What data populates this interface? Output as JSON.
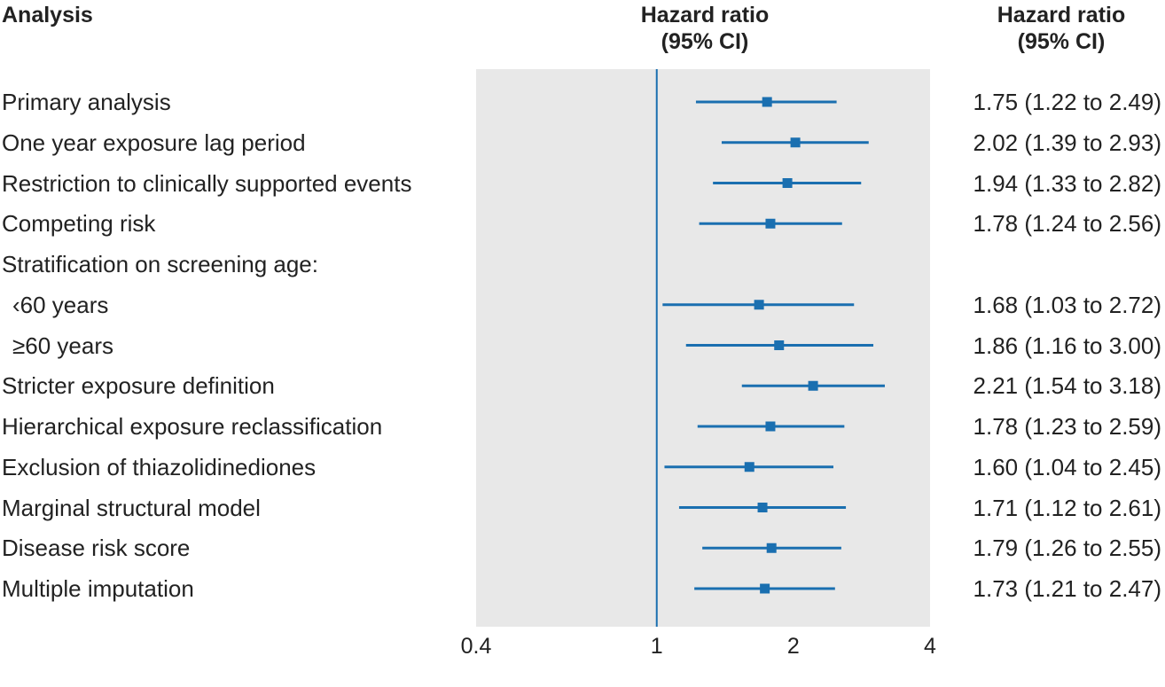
{
  "headers": {
    "analysis": "Analysis",
    "plot_line1": "Hazard ratio",
    "plot_line2": "(95% CI)",
    "values_line1": "Hazard ratio",
    "values_line2": "(95% CI)"
  },
  "colors": {
    "accent": "#1a6fb0",
    "panel": "#e8e8e8",
    "text": "#222222"
  },
  "chart_data": {
    "type": "forest",
    "xscale": "log",
    "xlim": [
      0.4,
      4
    ],
    "xticks": [
      "0.4",
      "1",
      "2",
      "4"
    ],
    "reference_line": 1,
    "rows": [
      {
        "label": "Primary analysis",
        "hr": 1.75,
        "lo": 1.22,
        "hi": 2.49,
        "text": "1.75 (1.22 to 2.49)",
        "indent": false
      },
      {
        "label": "One year exposure lag period",
        "hr": 2.02,
        "lo": 1.39,
        "hi": 2.93,
        "text": "2.02 (1.39 to 2.93)",
        "indent": false
      },
      {
        "label": "Restriction to clinically supported events",
        "hr": 1.94,
        "lo": 1.33,
        "hi": 2.82,
        "text": "1.94 (1.33 to 2.82)",
        "indent": false
      },
      {
        "label": "Competing risk",
        "hr": 1.78,
        "lo": 1.24,
        "hi": 2.56,
        "text": "1.78 (1.24 to 2.56)",
        "indent": false
      },
      {
        "label": "Stratification on screening age:",
        "hr": null,
        "lo": null,
        "hi": null,
        "text": "",
        "indent": false
      },
      {
        "label": "‹60 years",
        "hr": 1.68,
        "lo": 1.03,
        "hi": 2.72,
        "text": "1.68 (1.03 to 2.72)",
        "indent": true
      },
      {
        "label": "≥60 years",
        "hr": 1.86,
        "lo": 1.16,
        "hi": 3.0,
        "text": "1.86 (1.16 to 3.00)",
        "indent": true
      },
      {
        "label": "Stricter exposure definition",
        "hr": 2.21,
        "lo": 1.54,
        "hi": 3.18,
        "text": "2.21 (1.54 to 3.18)",
        "indent": false
      },
      {
        "label": "Hierarchical exposure reclassification",
        "hr": 1.78,
        "lo": 1.23,
        "hi": 2.59,
        "text": "1.78 (1.23 to 2.59)",
        "indent": false
      },
      {
        "label": "Exclusion of thiazolidinediones",
        "hr": 1.6,
        "lo": 1.04,
        "hi": 2.45,
        "text": "1.60 (1.04 to 2.45)",
        "indent": false
      },
      {
        "label": "Marginal structural model",
        "hr": 1.71,
        "lo": 1.12,
        "hi": 2.61,
        "text": "1.71 (1.12 to 2.61)",
        "indent": false
      },
      {
        "label": "Disease risk score",
        "hr": 1.79,
        "lo": 1.26,
        "hi": 2.55,
        "text": "1.79 (1.26 to 2.55)",
        "indent": false
      },
      {
        "label": "Multiple imputation",
        "hr": 1.73,
        "lo": 1.21,
        "hi": 2.47,
        "text": "1.73 (1.21 to 2.47)",
        "indent": false
      }
    ]
  }
}
